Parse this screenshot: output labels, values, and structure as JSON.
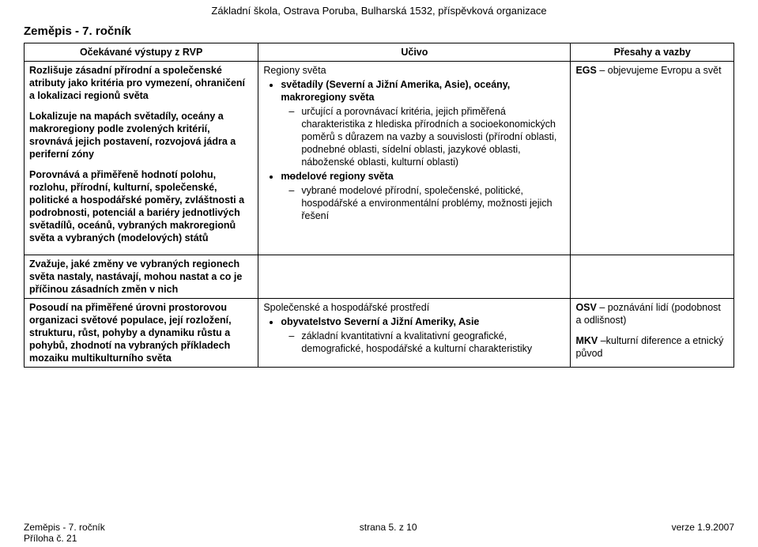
{
  "header": {
    "org": "Základní škola, Ostrava Poruba, Bulharská 1532, příspěvková organizace",
    "subject": "Zeměpis - 7. ročník"
  },
  "table": {
    "headers": [
      "Očekávané výstupy z RVP",
      "Učivo",
      "Přesahy a vazby"
    ],
    "row1": {
      "col1": {
        "p1": "Rozlišuje zásadní přírodní a společenské atributy jako kritéria pro vymezení, ohraničení a lokalizaci regionů světa",
        "p2": "Lokalizuje na mapách světadíly, oceány a makroregiony podle zvolených kritérií, srovnává jejich postavení, rozvojová jádra a periferní zóny",
        "p3": "Porovnává a přiměřeně hodnotí polohu, rozlohu, přírodní, kulturní, společenské, politické a hospodářské poměry, zvláštnosti a podrobnosti, potenciál a bariéry jednotlivých světadílů, oceánů, vybraných makroregionů světa a vybraných (modelových) států"
      },
      "col2": {
        "title": "Regiony světa",
        "b1_head": "světadíly (Severní a Jižní Amerika, Asie), oceány, makroregiony světa",
        "b1_sub": "určující a porovnávací kritéria, jejich přiměřená charakteristika z hlediska přírodních a socioekonomických poměrů s důrazem na vazby a souvislosti (přírodní oblasti, podnebné oblasti, sídelní oblasti, jazykové oblasti, náboženské oblasti, kulturní oblasti)",
        "b2_head": "modelové regiony světa",
        "b2_sub": "vybrané modelové přírodní, společenské, politické, hospodářské a environmentální problémy, možnosti jejich řešení"
      },
      "col3": {
        "line1a": "EGS",
        "line1b": " – objevujeme Evropu a svět"
      }
    },
    "row2": {
      "col1": {
        "p1": "Zvažuje, jaké změny ve vybraných regionech světa nastaly, nastávají, mohou nastat a co je příčinou zásadních změn v nich"
      }
    },
    "row3": {
      "col1": {
        "p1": "Posoudí na přiměřené úrovni prostorovou organizaci světové populace, její rozložení, strukturu, růst, pohyby a dynamiku růstu a pohybů, zhodnotí na vybraných příkladech mozaiku multikulturního světa"
      },
      "col2": {
        "title": "Společenské a hospodářské prostředí",
        "b1_head": "obyvatelstvo Severní a Jižní Ameriky, Asie",
        "b1_sub": "základní kvantitativní a kvalitativní geografické, demografické, hospodářské a kulturní charakteristiky"
      },
      "col3": {
        "line1a": "OSV",
        "line1b": " – poznávání lidí (podobnost a odlišnost)",
        "line2a": "MKV",
        "line2b": " –kulturní diference a etnický původ"
      }
    }
  },
  "footer": {
    "left1": "Zeměpis - 7. ročník",
    "left2": "Příloha č. 21",
    "center": "strana 5. z 10",
    "right": "verze 1.9.2007"
  }
}
